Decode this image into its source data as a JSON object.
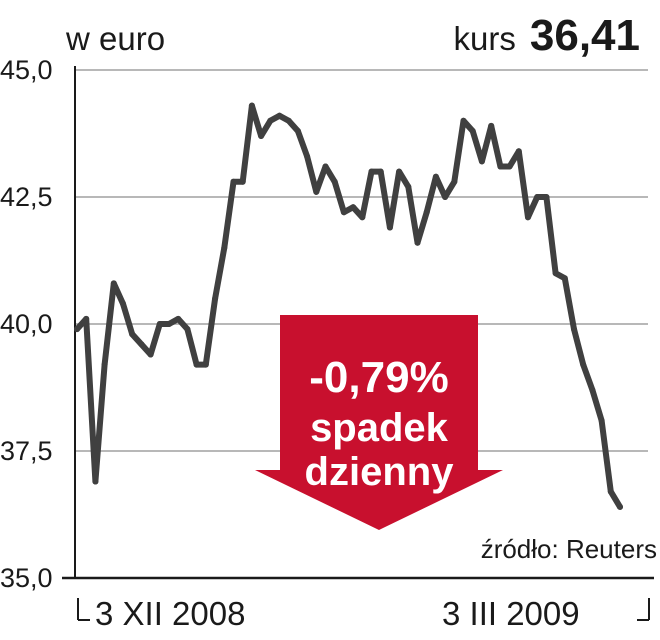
{
  "header": {
    "unit": "w euro",
    "kurs_label": "kurs",
    "kurs_value": "36,41"
  },
  "badge": {
    "change": "-0,79%",
    "line1": "spadek",
    "line2": "dzienny",
    "color": "#c8102e"
  },
  "source": "źródło: Reuters",
  "colors": {
    "line": "#404040",
    "grid": "#a0a0a0",
    "text": "#1a1a1a"
  },
  "chart_data": {
    "type": "line",
    "title": "",
    "xlabel": "",
    "ylabel": "w euro",
    "ylim": [
      35.0,
      45.0
    ],
    "y_ticks": [
      "45,0",
      "42,5",
      "40,0",
      "37,5",
      "35,0"
    ],
    "x_ticks": [
      "3 XII 2008",
      "3 III 2009"
    ],
    "grid": true,
    "series": [
      {
        "values": [
          39.9,
          40.1,
          36.9,
          39.2,
          40.8,
          40.4,
          39.8,
          39.6,
          39.4,
          40.0,
          40.0,
          40.1,
          39.9,
          39.2,
          39.2,
          40.5,
          41.5,
          42.8,
          42.8,
          44.3,
          43.7,
          44.0,
          44.1,
          44.0,
          43.8,
          43.3,
          42.6,
          43.1,
          42.8,
          42.2,
          42.3,
          42.1,
          43.0,
          43.0,
          41.9,
          43.0,
          42.7,
          41.6,
          42.2,
          42.9,
          42.5,
          42.8,
          44.0,
          43.8,
          43.2,
          43.9,
          43.1,
          43.1,
          43.4,
          42.1,
          42.5,
          42.5,
          41.0,
          40.9,
          39.9,
          39.2,
          38.7,
          38.1,
          36.7,
          36.4
        ]
      }
    ]
  }
}
